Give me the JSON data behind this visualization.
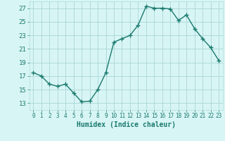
{
  "x": [
    0,
    1,
    2,
    3,
    4,
    5,
    6,
    7,
    8,
    9,
    10,
    11,
    12,
    13,
    14,
    15,
    16,
    17,
    18,
    19,
    20,
    21,
    22,
    23
  ],
  "y": [
    17.5,
    17.0,
    15.8,
    15.5,
    15.8,
    14.5,
    13.2,
    13.3,
    15.0,
    17.5,
    22.0,
    22.5,
    23.0,
    24.5,
    27.3,
    27.0,
    27.0,
    26.9,
    25.2,
    26.0,
    24.0,
    22.5,
    21.2,
    19.3
  ],
  "line_color": "#1a7a6e",
  "marker": "+",
  "marker_size": 4,
  "linewidth": 1.0,
  "bg_color": "#d8f5f5",
  "grid_color": "#b0dada",
  "xlabel": "Humidex (Indice chaleur)",
  "xlim": [
    -0.5,
    23.5
  ],
  "ylim": [
    12,
    28
  ],
  "yticks": [
    13,
    15,
    17,
    19,
    21,
    23,
    25,
    27
  ],
  "xticks": [
    0,
    1,
    2,
    3,
    4,
    5,
    6,
    7,
    8,
    9,
    10,
    11,
    12,
    13,
    14,
    15,
    16,
    17,
    18,
    19,
    20,
    21,
    22,
    23
  ],
  "xlabel_fontsize": 7,
  "tick_fontsize": 6.5,
  "tick_color": "#1a7a6e"
}
